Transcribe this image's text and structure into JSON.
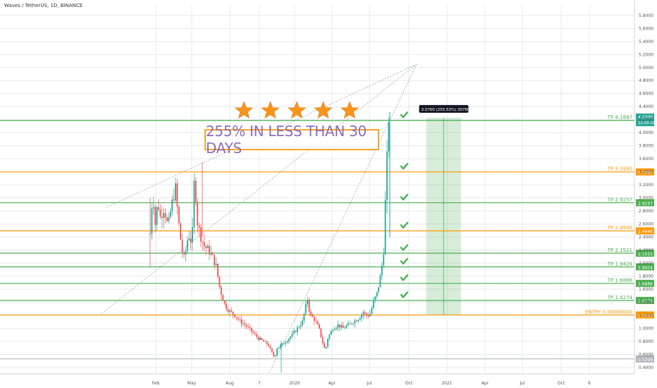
{
  "header": {
    "title": "Waves / TetherUS, 1D, BINANCE"
  },
  "banner": {
    "text": "255% IN LESS THAN 30 DAYS"
  },
  "rating": {
    "stars": 5
  },
  "colors": {
    "green": "#4caf50",
    "orange": "#ff9800",
    "up": "#26a69a",
    "down": "#ef5350",
    "grid": "#e6e9ef"
  },
  "tooltip": {
    "text": "3.0760 (255.53%) 30760"
  },
  "last_price": {
    "value": "4.2300",
    "time": "22:05:00"
  },
  "chart_data": {
    "type": "candlestick",
    "x_ticks": [
      "Feb",
      "May",
      "Aug",
      "7",
      "2020",
      "Apr",
      "Jul",
      "Oct",
      "2021",
      "Apr",
      "Jul",
      "Oct",
      "6"
    ],
    "y_ticks": [
      "5.8000",
      "5.6000",
      "5.4000",
      "5.2000",
      "5.0000",
      "4.8000",
      "4.6000",
      "4.4000",
      "4.2000",
      "4.0000",
      "3.8000",
      "3.6000",
      "3.4000",
      "3.2000",
      "3.0000",
      "2.8000",
      "2.6000",
      "2.4000",
      "2.2000",
      "2.0000",
      "1.8000",
      "1.6000",
      "1.4000",
      "1.2000",
      "1.0000",
      "0.8000",
      "0.6000",
      "0.4000"
    ],
    "ylim": [
      0.3,
      5.95
    ],
    "levels": [
      {
        "label": "TP 4.1887",
        "tag": "4.1887",
        "value": 4.1887,
        "color": "green"
      },
      {
        "label": "TP 3.3990",
        "tag": "3.3990",
        "value": 3.399,
        "color": "orange"
      },
      {
        "label": "TP 2.9257",
        "tag": "2.9257",
        "value": 2.9257,
        "color": "green"
      },
      {
        "label": "TP 2.4946",
        "tag": "2.4946",
        "value": 2.4946,
        "color": "orange"
      },
      {
        "label": "TP 2.1521",
        "tag": "2.1521",
        "value": 2.1521,
        "color": "green"
      },
      {
        "label": "TP 1.9424",
        "tag": "1.9424",
        "value": 1.9424,
        "color": "green"
      },
      {
        "label": "TP 1.6886",
        "tag": "1.6886",
        "value": 1.6886,
        "color": "green"
      },
      {
        "label": "TP 1.4274",
        "tag": "1.4274",
        "value": 1.4274,
        "color": "green"
      },
      {
        "label": "ENTRY 0.00000000",
        "tag": "1.2043",
        "value": 1.2043,
        "color": "orange"
      }
    ],
    "low_tag": {
      "text": "0.5299",
      "value": 0.5299
    },
    "price_path": [
      [
        0.0,
        2.45
      ],
      [
        0.004,
        3.1
      ],
      [
        0.008,
        2.6
      ],
      [
        0.012,
        2.95
      ],
      [
        0.016,
        2.7
      ],
      [
        0.022,
        2.85
      ],
      [
        0.028,
        2.55
      ],
      [
        0.034,
        2.9
      ],
      [
        0.04,
        3.15
      ],
      [
        0.044,
        2.7
      ],
      [
        0.05,
        2.2
      ],
      [
        0.054,
        2.05
      ],
      [
        0.06,
        2.45
      ],
      [
        0.066,
        2.3
      ],
      [
        0.07,
        3.4
      ],
      [
        0.074,
        2.65
      ],
      [
        0.08,
        2.4
      ],
      [
        0.086,
        2.25
      ],
      [
        0.092,
        2.2
      ],
      [
        0.098,
        2.1
      ],
      [
        0.104,
        1.95
      ],
      [
        0.11,
        1.6
      ],
      [
        0.118,
        1.35
      ],
      [
        0.126,
        1.25
      ],
      [
        0.134,
        1.2
      ],
      [
        0.142,
        1.1
      ],
      [
        0.15,
        1.05
      ],
      [
        0.16,
        0.95
      ],
      [
        0.17,
        0.85
      ],
      [
        0.178,
        0.8
      ],
      [
        0.186,
        0.75
      ],
      [
        0.192,
        0.62
      ],
      [
        0.196,
        0.55
      ],
      [
        0.2,
        0.7
      ],
      [
        0.208,
        0.75
      ],
      [
        0.216,
        0.82
      ],
      [
        0.224,
        0.9
      ],
      [
        0.232,
        1.0
      ],
      [
        0.24,
        1.1
      ],
      [
        0.248,
        1.45
      ],
      [
        0.252,
        1.2
      ],
      [
        0.258,
        1.15
      ],
      [
        0.266,
        1.0
      ],
      [
        0.272,
        0.78
      ],
      [
        0.276,
        0.65
      ],
      [
        0.28,
        0.85
      ],
      [
        0.288,
        1.0
      ],
      [
        0.296,
        1.05
      ],
      [
        0.304,
        1.0
      ],
      [
        0.312,
        1.05
      ],
      [
        0.32,
        1.1
      ],
      [
        0.328,
        1.15
      ],
      [
        0.336,
        1.25
      ],
      [
        0.34,
        1.2
      ],
      [
        0.346,
        1.2
      ],
      [
        0.352,
        1.4
      ],
      [
        0.358,
        1.55
      ],
      [
        0.364,
        1.85
      ],
      [
        0.368,
        2.2
      ],
      [
        0.372,
        3.3
      ],
      [
        0.376,
        4.23
      ]
    ],
    "projection_box": {
      "from": 1.2043,
      "to": 4.23
    },
    "trendlines": [
      {
        "from": [
          -0.07,
          2.85
        ],
        "to": [
          0.42,
          5.05
        ]
      },
      {
        "from": [
          -0.08,
          1.2
        ],
        "to": [
          0.42,
          5.05
        ]
      },
      {
        "from": [
          0.188,
          0.32
        ],
        "to": [
          0.42,
          5.05
        ]
      }
    ]
  }
}
